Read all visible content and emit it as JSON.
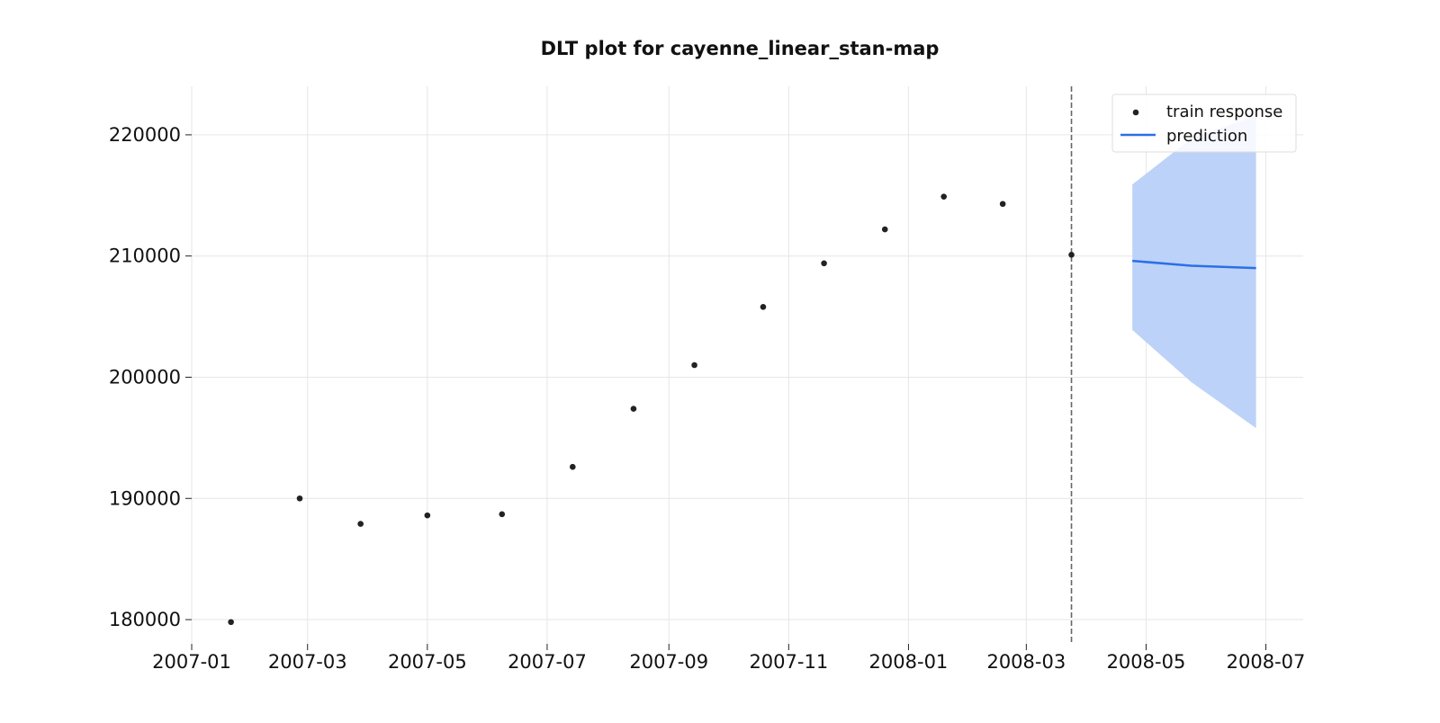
{
  "chart_data": {
    "type": "scatter",
    "title": "DLT plot for cayenne_linear_stan-map",
    "xlabel": "",
    "ylabel": "",
    "x_axis_type": "date",
    "xlim": [
      "2007-01-01",
      "2008-07-20"
    ],
    "ylim": [
      178000,
      224000
    ],
    "x_ticks": [
      "2007-01",
      "2007-03",
      "2007-05",
      "2007-07",
      "2007-09",
      "2007-11",
      "2008-01",
      "2008-03",
      "2008-05",
      "2008-07"
    ],
    "y_ticks": [
      180000,
      190000,
      200000,
      210000,
      220000
    ],
    "grid": true,
    "legend_position": "top-right",
    "split_date": "2008-03-24",
    "series": [
      {
        "name": "train response",
        "kind": "scatter",
        "color": "#222222",
        "points": [
          {
            "x": "2007-01-21",
            "y": 179800
          },
          {
            "x": "2007-02-25",
            "y": 190000
          },
          {
            "x": "2007-03-28",
            "y": 187900
          },
          {
            "x": "2007-05-01",
            "y": 188600
          },
          {
            "x": "2007-06-08",
            "y": 188700
          },
          {
            "x": "2007-07-14",
            "y": 192600
          },
          {
            "x": "2007-08-14",
            "y": 197400
          },
          {
            "x": "2007-09-14",
            "y": 201000
          },
          {
            "x": "2007-10-19",
            "y": 205800
          },
          {
            "x": "2007-11-19",
            "y": 209400
          },
          {
            "x": "2007-12-20",
            "y": 212200
          },
          {
            "x": "2008-01-19",
            "y": 214900
          },
          {
            "x": "2008-02-18",
            "y": 214300
          },
          {
            "x": "2008-03-24",
            "y": 210100
          }
        ]
      },
      {
        "name": "prediction",
        "kind": "line",
        "color": "#2b6fe6",
        "points": [
          {
            "x": "2008-04-24",
            "y": 209600
          },
          {
            "x": "2008-05-24",
            "y": 209200
          },
          {
            "x": "2008-06-26",
            "y": 209000
          }
        ]
      }
    ],
    "prediction_interval": {
      "color": "#bdd2f8",
      "points": [
        {
          "x": "2008-04-24",
          "lower": 203900,
          "upper": 215900
        },
        {
          "x": "2008-05-24",
          "lower": 199600,
          "upper": 219700
        },
        {
          "x": "2008-06-26",
          "lower": 195800,
          "upper": 221600
        }
      ]
    }
  }
}
